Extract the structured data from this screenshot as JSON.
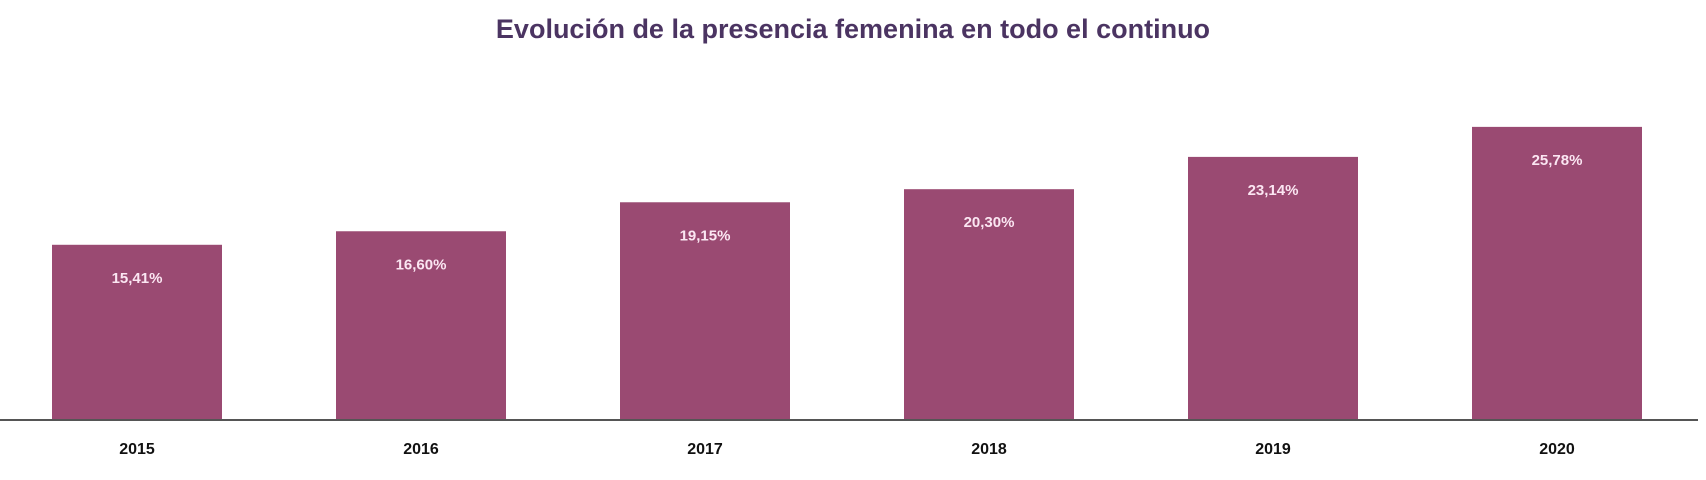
{
  "chart_data": {
    "type": "bar",
    "title": "Evolución de la presencia femenina en todo el continuo",
    "categories": [
      "2015",
      "2016",
      "2017",
      "2018",
      "2019",
      "2020"
    ],
    "values": [
      15.41,
      16.6,
      19.15,
      20.3,
      23.14,
      25.78
    ],
    "data_labels": [
      "15,41%",
      "16,60%",
      "19,15%",
      "20,30%",
      "23,14%",
      "25,78%"
    ],
    "xlabel": "",
    "ylabel": "",
    "ylim": [
      0,
      30
    ],
    "grid": false,
    "legend": "none",
    "colors": {
      "bar": "#9a4a72",
      "title": "#4b3462",
      "axis": "#555555",
      "data_label": "#fbe6f2"
    }
  }
}
